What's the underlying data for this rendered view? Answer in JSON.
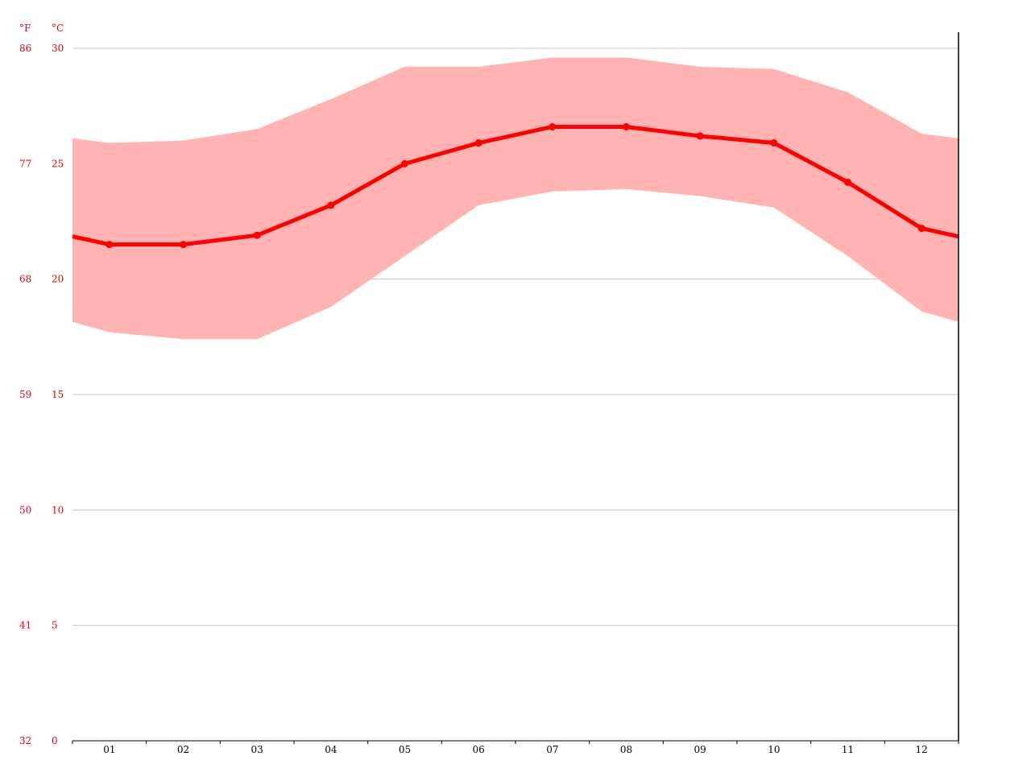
{
  "chart_data": {
    "type": "line",
    "title": "",
    "xlabel": "",
    "ylabel": "",
    "units": {
      "celsius": "°C",
      "fahrenheit": "°F"
    },
    "categories": [
      "01",
      "02",
      "03",
      "04",
      "05",
      "06",
      "07",
      "08",
      "09",
      "10",
      "11",
      "12"
    ],
    "ylim": [
      0,
      30
    ],
    "yticks_celsius": [
      0,
      5,
      10,
      15,
      20,
      25,
      30
    ],
    "yticks_fahrenheit": [
      32,
      41,
      50,
      59,
      68,
      77,
      86
    ],
    "grid": true,
    "series": [
      {
        "kind": "line",
        "values": [
          21.5,
          21.5,
          21.9,
          23.2,
          25.0,
          25.9,
          26.6,
          26.6,
          26.2,
          25.9,
          24.2,
          22.2
        ]
      },
      {
        "kind": "band-max",
        "values": [
          25.9,
          26.0,
          26.5,
          27.8,
          29.2,
          29.2,
          29.6,
          29.6,
          29.2,
          29.1,
          28.1,
          26.3
        ]
      },
      {
        "kind": "band-min",
        "values": [
          17.7,
          17.4,
          17.4,
          18.8,
          21.0,
          23.2,
          23.8,
          23.9,
          23.6,
          23.1,
          21.0,
          18.6
        ]
      }
    ],
    "colors": {
      "line": "#ff0000",
      "band": "#ffb3b3",
      "axis_text": "#e60000",
      "grid": "#c8c8c8"
    }
  }
}
